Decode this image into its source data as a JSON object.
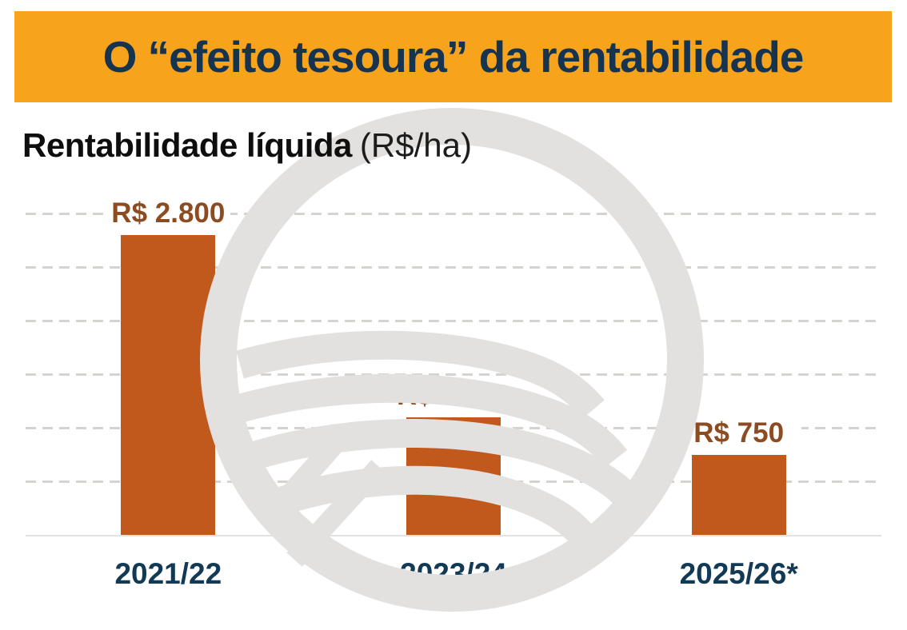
{
  "header": {
    "title": "O “efeito tesoura” da rentabilidade",
    "bg_color": "#F7A41C",
    "text_color": "#16344F"
  },
  "subtitle": {
    "main": "Rentabilidade líquida",
    "unit": "(R$/ha)"
  },
  "watermark": {
    "icon": "field-logo-watermark-icon",
    "color": "#E2E1DF"
  },
  "chart_data": {
    "type": "bar",
    "title": "Rentabilidade líquida (R$/ha)",
    "categories": [
      "2021/22",
      "2023/24",
      "2025/26*"
    ],
    "values": [
      2800,
      1100,
      750
    ],
    "value_labels": [
      "R$ 2.800",
      "R$ 1.100",
      "R$ 750"
    ],
    "unit": "R$/ha",
    "ylim": [
      0,
      3000
    ],
    "gridline_step": 500,
    "grid": "dashed-horizontal",
    "legend": "none",
    "bar_color": "#C1591D",
    "value_label_color": "#8D4B22",
    "category_label_color": "#133A55"
  }
}
